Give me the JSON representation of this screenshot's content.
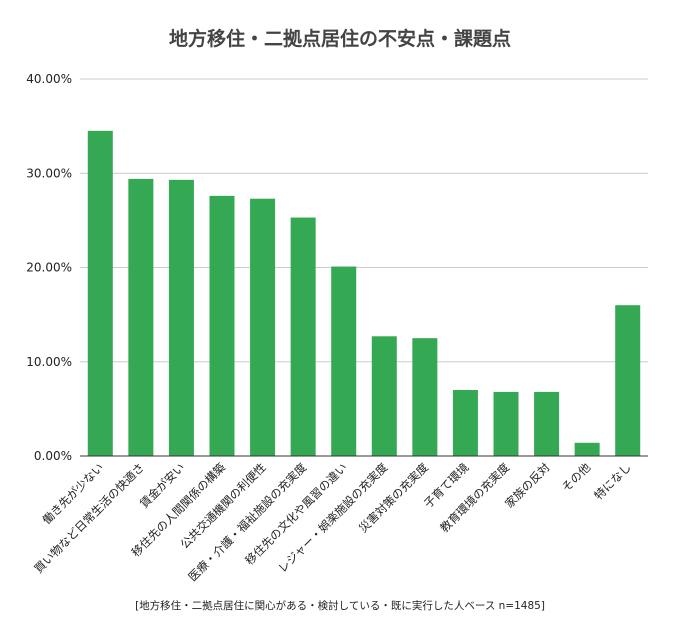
{
  "chart_data": {
    "type": "bar",
    "title": "地方移住・二拠点居住の不安点・課題点",
    "note": "[地方移住・二拠点居住に関心がある・検討している・既に実行した人ベース n=1485]",
    "xlabel": "",
    "ylabel": "",
    "categories": [
      "働き先が少ない",
      "買い物など日常生活の快適さ",
      "賃金が安い",
      "移住先の人間関係の構築",
      "公共交通機関の利便性",
      "医療・介護・福祉施設の充実度",
      "移住先の文化や風習の違い",
      "レジャー・娯楽施設の充実度",
      "災害対策の充実度",
      "子育て環境",
      "教育環境の充実度",
      "家族の反対",
      "その他",
      "特になし"
    ],
    "values": [
      34.5,
      29.4,
      29.3,
      27.6,
      27.3,
      25.3,
      20.1,
      12.7,
      12.5,
      7.0,
      6.8,
      6.8,
      1.4,
      16.0
    ],
    "yticks": [
      "0.00%",
      "10.00%",
      "20.00%",
      "30.00%",
      "40.00%"
    ],
    "ylim": [
      0,
      40
    ],
    "grid": true,
    "legend": "none",
    "bar_color": "#34a853",
    "grid_color": "#cccccc",
    "axis_color": "#333333"
  }
}
